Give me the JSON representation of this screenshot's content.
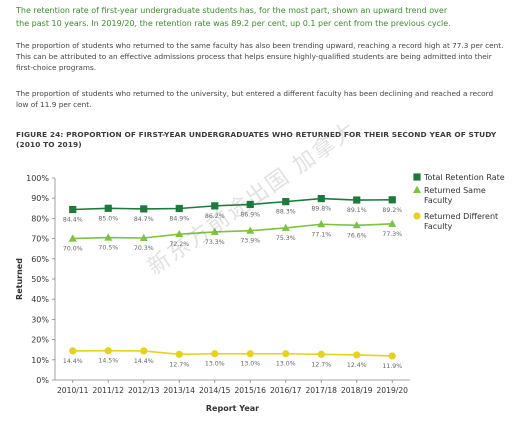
{
  "intro": {
    "line1": "The retention rate of first-year undergraduate students has, for the most part, shown an upward trend over",
    "line2": "the past 10 years. In 2019/20, the retention rate was 89.2 per cent, up 0.1 per cent from the previous cycle."
  },
  "paragraphs": [
    "The proportion of students who returned to the same faculty has also been trending upward, reaching a record high at 77.3 per cent. This can be attributed to an effective admissions process that helps ensure highly-qualified students are being admitted into their first-choice programs.",
    "The proportion of students who returned to the university, but entered a different faculty has been declining and reached a record low of 11.9 per cent."
  ],
  "figure_title": "FIGURE 24: PROPORTION OF FIRST-YEAR UNDERGRADUATES WHO RETURNED FOR THEIR SECOND YEAR OF STUDY (2010 TO 2019)",
  "watermark": "新东方前途出国 加拿大",
  "chart_data": {
    "type": "line",
    "categories": [
      "2010/11",
      "2011/12",
      "2012/13",
      "2013/14",
      "2014/15",
      "2015/16",
      "2016/17",
      "2017/18",
      "2018/19",
      "2019/20"
    ],
    "series": [
      {
        "name": "Total Retention Rate",
        "marker": "square",
        "color": "#1e7a3c",
        "values": [
          84.4,
          85.0,
          84.7,
          84.9,
          86.2,
          86.9,
          88.3,
          89.8,
          89.1,
          89.2
        ],
        "labels": [
          "84.4%",
          "85.0%",
          "84.7%",
          "84.9%",
          "86.2%",
          "86.9%",
          "88.3%",
          "89.8%",
          "89.1%",
          "89.2%"
        ]
      },
      {
        "name": "Returned Same Faculty",
        "marker": "triangle",
        "color": "#7dc242",
        "values": [
          70.0,
          70.5,
          70.3,
          72.2,
          73.3,
          73.9,
          75.3,
          77.1,
          76.6,
          77.3
        ],
        "labels": [
          "70.0%",
          "70.5%",
          "70.3%",
          "72.2%",
          "73.3%",
          "73.9%",
          "75.3%",
          "77.1%",
          "76.6%",
          "77.3%"
        ]
      },
      {
        "name": "Returned Different Faculty",
        "marker": "circle",
        "color": "#e6d21c",
        "values": [
          14.4,
          14.5,
          14.4,
          12.7,
          13.0,
          13.0,
          13.0,
          12.7,
          12.4,
          11.9
        ],
        "labels": [
          "14.4%",
          "14.5%",
          "14.4%",
          "12.7%",
          "13.0%",
          "13.0%",
          "13.0%",
          "12.7%",
          "12.4%",
          "11.9%"
        ]
      }
    ],
    "xlabel": "Report Year",
    "ylabel": "Returned",
    "ylim": [
      0,
      100
    ],
    "yticks": [
      0,
      10,
      20,
      30,
      40,
      50,
      60,
      70,
      80,
      90,
      100
    ],
    "ytick_labels": [
      "0%",
      "10%",
      "20%",
      "30%",
      "40%",
      "50%",
      "60%",
      "70%",
      "80%",
      "90%",
      "100%"
    ],
    "grid": false,
    "legend": "right"
  }
}
